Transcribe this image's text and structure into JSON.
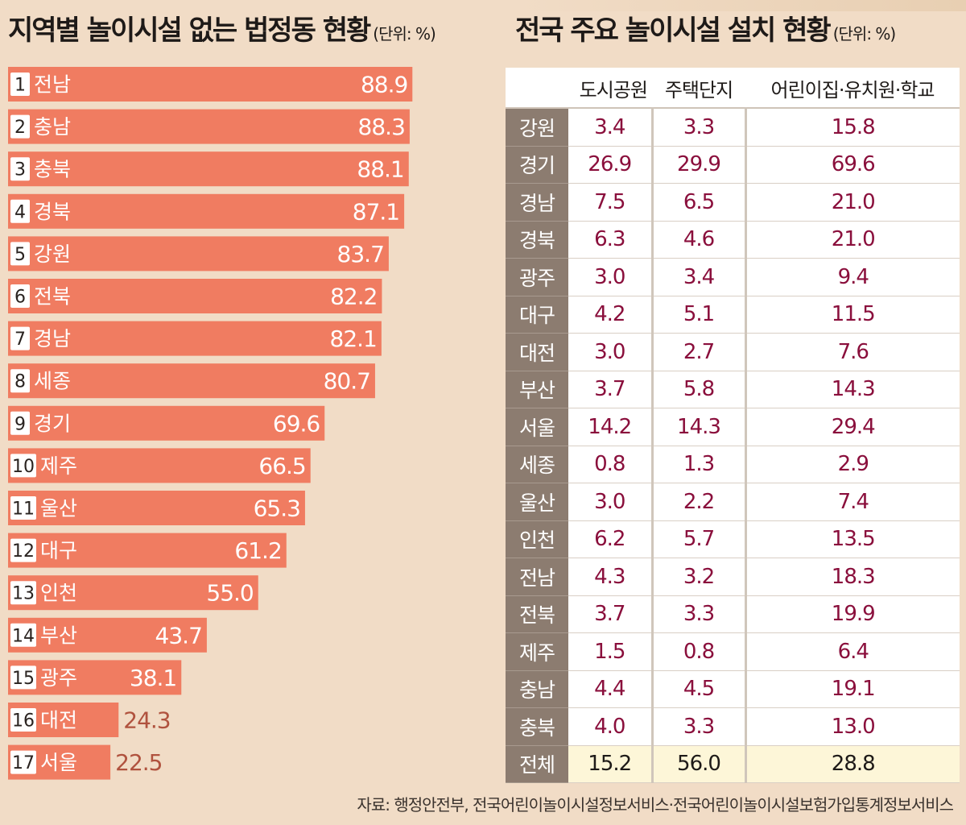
{
  "left": {
    "title": "지역별 놀이시설 없는 법정동 현황",
    "unit": "(단위: %)"
  },
  "right": {
    "title": "전국 주요 놀이시설 설치 현황",
    "unit": "(단위: %)"
  },
  "colors": {
    "bar": "#f07c61",
    "bar_value_inside": "#ffffff",
    "bar_value_outside": "#b0523e",
    "table_value": "#8a0f3c",
    "region_cell": "#8c7c70",
    "total_row": "#fdf6d8"
  },
  "chart_data": [
    {
      "type": "bar",
      "orientation": "horizontal",
      "title": "지역별 놀이시설 없는 법정동 현황",
      "unit": "(단위: %)",
      "ranks": [
        "1",
        "2",
        "3",
        "4",
        "5",
        "6",
        "7",
        "8",
        "9",
        "10",
        "11",
        "12",
        "13",
        "14",
        "15",
        "16",
        "17"
      ],
      "categories": [
        "전남",
        "충남",
        "충북",
        "경북",
        "강원",
        "전북",
        "경남",
        "세종",
        "경기",
        "제주",
        "울산",
        "대구",
        "인천",
        "부산",
        "광주",
        "대전",
        "서울"
      ],
      "values": [
        88.9,
        88.3,
        88.1,
        87.1,
        83.7,
        82.2,
        82.1,
        80.7,
        69.6,
        66.5,
        65.3,
        61.2,
        55.0,
        43.7,
        38.1,
        24.3,
        22.5
      ],
      "value_labels": [
        "88.9",
        "88.3",
        "88.1",
        "87.1",
        "83.7",
        "82.2",
        "82.1",
        "80.7",
        "69.6",
        "66.5",
        "65.3",
        "61.2",
        "55.0",
        "43.7",
        "38.1",
        "24.3",
        "22.5"
      ],
      "xlim": [
        0,
        100
      ]
    },
    {
      "type": "table",
      "title": "전국 주요 놀이시설 설치 현황",
      "unit": "(단위: %)",
      "columns": [
        "",
        "도시공원",
        "주택단지",
        "어린이집·유치원·학교"
      ],
      "rows": [
        [
          "강원",
          "3.4",
          "3.3",
          "15.8"
        ],
        [
          "경기",
          "26.9",
          "29.9",
          "69.6"
        ],
        [
          "경남",
          "7.5",
          "6.5",
          "21.0"
        ],
        [
          "경북",
          "6.3",
          "4.6",
          "21.0"
        ],
        [
          "광주",
          "3.0",
          "3.4",
          "9.4"
        ],
        [
          "대구",
          "4.2",
          "5.1",
          "11.5"
        ],
        [
          "대전",
          "3.0",
          "2.7",
          "7.6"
        ],
        [
          "부산",
          "3.7",
          "5.8",
          "14.3"
        ],
        [
          "서울",
          "14.2",
          "14.3",
          "29.4"
        ],
        [
          "세종",
          "0.8",
          "1.3",
          "2.9"
        ],
        [
          "울산",
          "3.0",
          "2.2",
          "7.4"
        ],
        [
          "인천",
          "6.2",
          "5.7",
          "13.5"
        ],
        [
          "전남",
          "4.3",
          "3.2",
          "18.3"
        ],
        [
          "전북",
          "3.7",
          "3.3",
          "19.9"
        ],
        [
          "제주",
          "1.5",
          "0.8",
          "6.4"
        ],
        [
          "충남",
          "4.4",
          "4.5",
          "19.1"
        ],
        [
          "충북",
          "4.0",
          "3.3",
          "13.0"
        ],
        [
          "전체",
          "15.2",
          "56.0",
          "28.8"
        ]
      ]
    }
  ],
  "source": "자료: 행정안전부, 전국어린이놀이시설정보서비스·전국어린이놀이시설보험가입통계정보서비스"
}
